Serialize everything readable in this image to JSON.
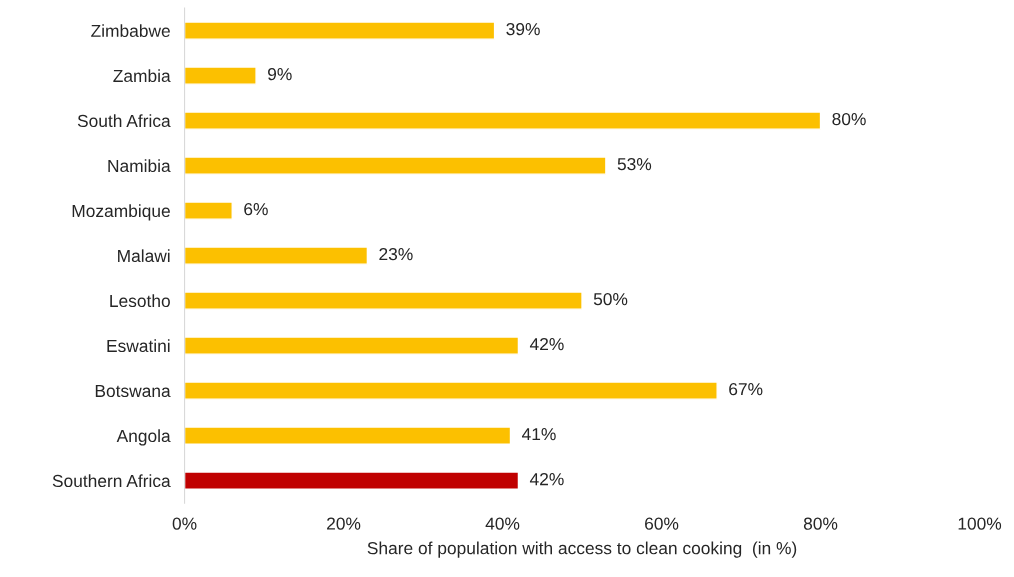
{
  "chart_data": {
    "type": "bar",
    "orientation": "horizontal",
    "xlabel": "Share of population with access to clean cooking  (in %)",
    "categories": [
      "Zimbabwe",
      "Zambia",
      "South Africa",
      "Namibia",
      "Mozambique",
      "Malawi",
      "Lesotho",
      "Eswatini",
      "Botswana",
      "Angola",
      "Southern Africa"
    ],
    "values": [
      39,
      9,
      80,
      53,
      6,
      23,
      50,
      42,
      67,
      41,
      42
    ],
    "colors": [
      "#fcc000",
      "#fcc000",
      "#fcc000",
      "#fcc000",
      "#fcc000",
      "#fcc000",
      "#fcc000",
      "#fcc000",
      "#fcc000",
      "#fcc000",
      "#c00000"
    ],
    "value_labels": [
      "39%",
      "9%",
      "80%",
      "53%",
      "6%",
      "23%",
      "50%",
      "42%",
      "67%",
      "41%",
      "42%"
    ],
    "xlim": [
      0,
      100
    ],
    "xticks": [
      {
        "value": 0,
        "label": "0%"
      },
      {
        "value": 20,
        "label": "20%"
      },
      {
        "value": 40,
        "label": "40%"
      },
      {
        "value": 60,
        "label": "60%"
      },
      {
        "value": 80,
        "label": "80%"
      },
      {
        "value": 100,
        "label": "100%"
      }
    ],
    "grid": false,
    "legend": false
  }
}
